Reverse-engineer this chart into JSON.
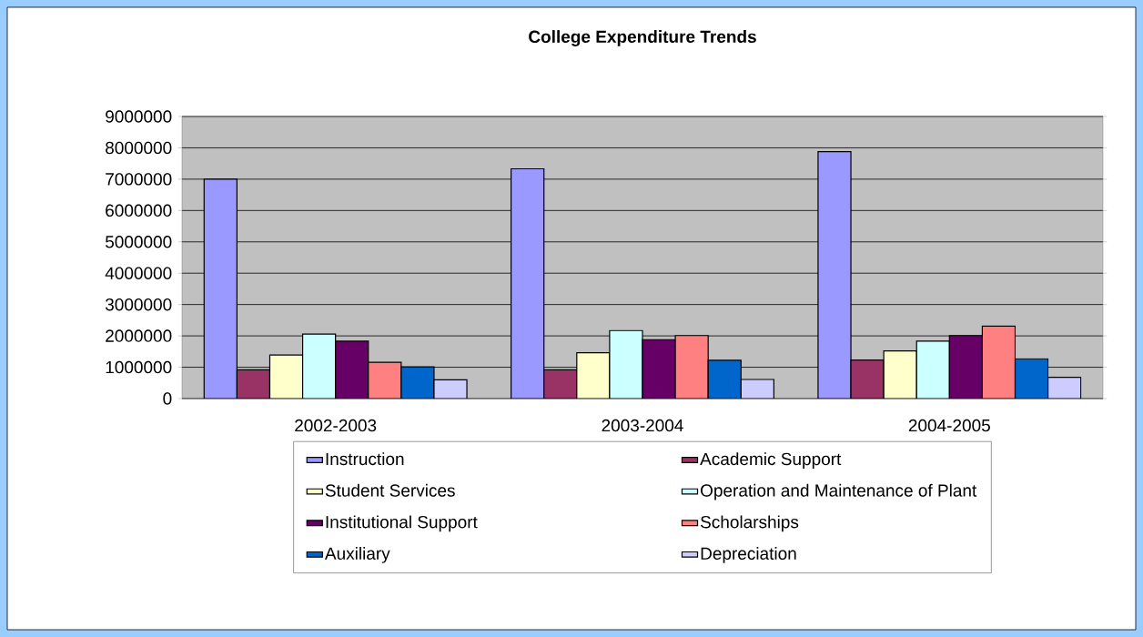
{
  "chart_data": {
    "type": "bar",
    "title": "College Expenditure Trends",
    "categories": [
      "2002-2003",
      "2003-2004",
      "2004-2005"
    ],
    "series": [
      {
        "name": "Instruction",
        "color": "#9999ff",
        "values": [
          7000000,
          7330000,
          7880000
        ]
      },
      {
        "name": "Academic Support",
        "color": "#993366",
        "values": [
          920000,
          920000,
          1230000
        ]
      },
      {
        "name": "Student Services",
        "color": "#ffffcc",
        "values": [
          1390000,
          1460000,
          1520000
        ]
      },
      {
        "name": "Operation and Maintenance of Plant",
        "color": "#ccffff",
        "values": [
          2060000,
          2170000,
          1830000
        ]
      },
      {
        "name": "Institutional Support",
        "color": "#660066",
        "values": [
          1830000,
          1880000,
          2010000
        ]
      },
      {
        "name": "Scholarships",
        "color": "#ff8080",
        "values": [
          1160000,
          2010000,
          2310000
        ]
      },
      {
        "name": "Auxiliary",
        "color": "#0066cc",
        "values": [
          1010000,
          1220000,
          1270000
        ]
      },
      {
        "name": "Depreciation",
        "color": "#ccccff",
        "values": [
          600000,
          610000,
          680000
        ]
      }
    ],
    "ylim": [
      0,
      9000000
    ],
    "yticks": [
      0,
      1000000,
      2000000,
      3000000,
      4000000,
      5000000,
      6000000,
      7000000,
      8000000,
      9000000
    ],
    "grid": "y",
    "legend": "bottom"
  }
}
